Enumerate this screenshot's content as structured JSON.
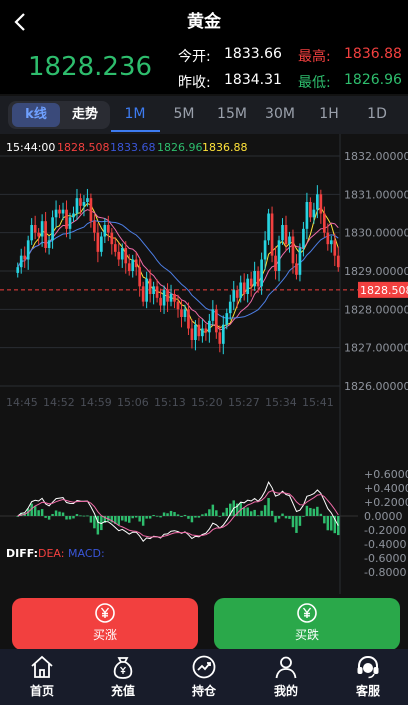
{
  "header": {
    "title": "黄金",
    "back_icon": "chevron-left-icon"
  },
  "quote": {
    "last_price": "1828.236",
    "open_label": "今开:",
    "open_value": "1833.66",
    "high_label": "最高:",
    "high_value": "1836.88",
    "prev_close_label": "昨收:",
    "prev_close_value": "1834.31",
    "low_label": "最低:",
    "low_value": "1826.96"
  },
  "tabs": {
    "kline_label": "k线",
    "trend_label": "走势",
    "timeframes": [
      "1M",
      "5M",
      "15M",
      "30M",
      "1H",
      "1D"
    ],
    "active_timeframe": "1M"
  },
  "legend": {
    "time": "15:44:00",
    "ma1": "1828.508",
    "ma2": "1833.68",
    "ma3": "1826.96",
    "ma4": "1836.88"
  },
  "macd_legend": {
    "diff": "DIFF:",
    "dea": "DEA:",
    "macd": "MACD:"
  },
  "chart_data": {
    "type": "candlestick",
    "y_ticks": [
      "1832.00000",
      "1831.00000",
      "1830.00000",
      "1829.00000",
      "1828.00000",
      "1827.00000",
      "1826.00000"
    ],
    "ylim": [
      1826,
      1832
    ],
    "x_ticks": [
      "14:45",
      "14:52",
      "14:59",
      "15:06",
      "15:13",
      "15:20",
      "15:27",
      "15:34",
      "15:41"
    ],
    "current_price_label": "1828.508",
    "current_price": 1828.508,
    "macd_ticks": [
      "+0.6000",
      "+0.4000",
      "+0.2000",
      "0.0000",
      "-0.2000",
      "-0.4000",
      "-0.6000",
      "-0.8000"
    ],
    "macd_ylim": [
      -0.8,
      0.6
    ],
    "close": [
      1829.1,
      1829.4,
      1829.3,
      1829.8,
      1830.2,
      1830.0,
      1829.9,
      1830.3,
      1829.6,
      1829.8,
      1830.4,
      1830.6,
      1830.5,
      1830.6,
      1830.1,
      1830.4,
      1830.5,
      1830.9,
      1830.7,
      1830.8,
      1830.9,
      1830.3,
      1830.0,
      1829.5,
      1829.9,
      1830.2,
      1830.0,
      1829.7,
      1829.5,
      1829.3,
      1829.6,
      1829.2,
      1829.0,
      1829.3,
      1829.1,
      1828.6,
      1828.2,
      1828.8,
      1828.4,
      1828.6,
      1828.3,
      1828.1,
      1828.5,
      1828.2,
      1828.4,
      1828.2,
      1828.0,
      1827.8,
      1828.0,
      1827.5,
      1827.2,
      1827.6,
      1827.3,
      1827.5,
      1827.4,
      1827.7,
      1828.0,
      1827.4,
      1827.1,
      1827.6,
      1827.9,
      1828.2,
      1828.5,
      1828.3,
      1828.7,
      1828.4,
      1828.8,
      1828.6,
      1829.0,
      1828.6,
      1829.3,
      1829.8,
      1830.5,
      1829.4,
      1829.0,
      1829.8,
      1830.2,
      1829.7,
      1829.9,
      1829.2,
      1828.9,
      1829.6,
      1830.1,
      1830.8,
      1830.4,
      1830.6,
      1831.0,
      1830.5,
      1830.0,
      1829.7,
      1829.8,
      1829.4,
      1829.1
    ]
  },
  "actions": {
    "buy_up_label": "买涨",
    "buy_down_label": "买跌"
  },
  "nav": [
    {
      "label": "首页",
      "icon": "home-icon"
    },
    {
      "label": "充值",
      "icon": "money-bag-icon"
    },
    {
      "label": "持仓",
      "icon": "trend-chart-icon"
    },
    {
      "label": "我的",
      "icon": "user-icon"
    },
    {
      "label": "客服",
      "icon": "headset-icon"
    }
  ],
  "colors": {
    "up": "#f2403f",
    "down": "#2ebd6d",
    "accent": "#3d7bf0",
    "cyan": "#27d3e0"
  }
}
